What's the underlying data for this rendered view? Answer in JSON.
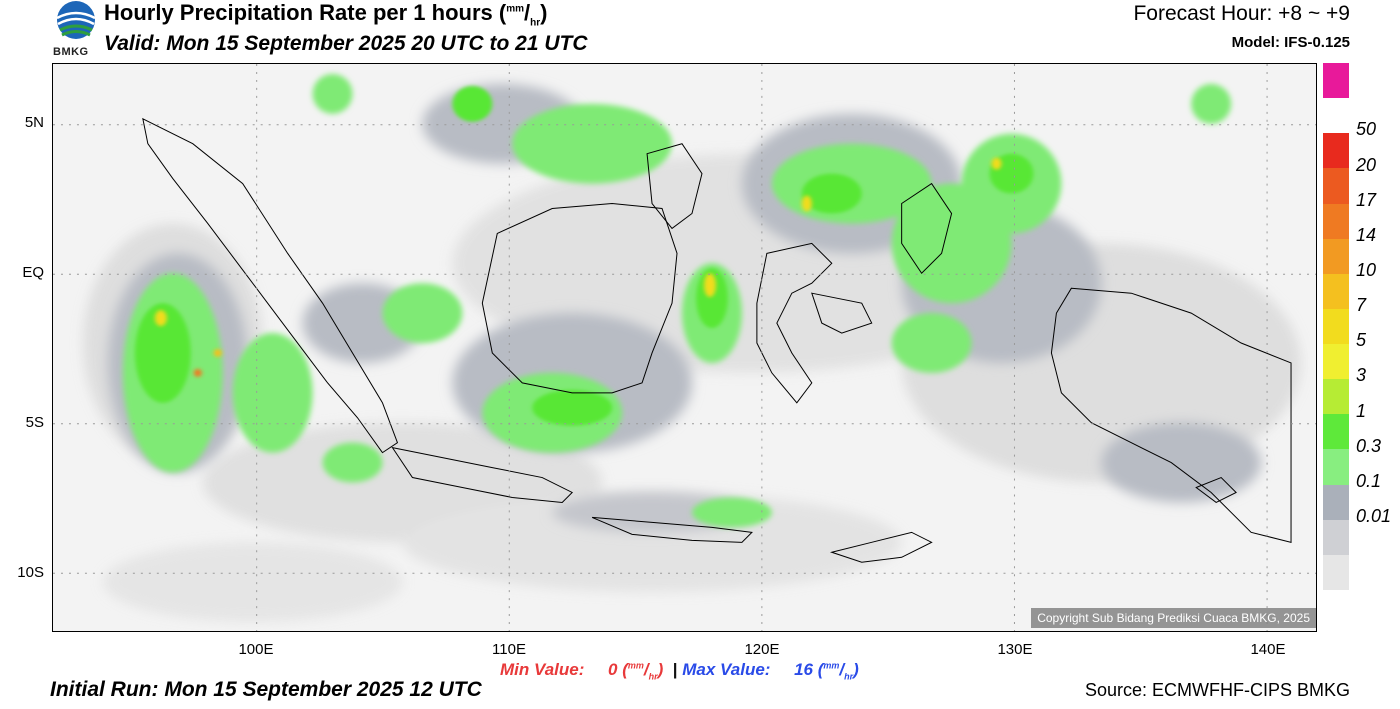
{
  "header": {
    "title": "Hourly Precipitation Rate per 1 hours",
    "title_unit_num": "mm",
    "title_unit_den": "hr",
    "valid": "Valid: Mon 15 September 2025 20 UTC to 21 UTC",
    "forecast_hour": "Forecast Hour: +8 ~ +9",
    "model": "Model: IFS-0.125"
  },
  "logo": {
    "text": "BMKG",
    "icon": "bmkg-logo-icon"
  },
  "axes": {
    "lat_labels": [
      "5N",
      "EQ",
      "5S",
      "10S"
    ],
    "lon_labels": [
      "100E",
      "110E",
      "120E",
      "130E",
      "140E"
    ]
  },
  "colorbar": {
    "labels": [
      "50",
      "20",
      "17",
      "14",
      "10",
      "7",
      "5",
      "3",
      "1",
      "0.3",
      "0.1",
      "0.01"
    ],
    "colors": [
      "#e8199a",
      "#ffffff",
      "#e82a1e",
      "#ec5a20",
      "#ef7a22",
      "#f29a22",
      "#f4c01f",
      "#f2dc1e",
      "#f0ef30",
      "#b6ec34",
      "#5ee93a",
      "#88ee80",
      "#aab0ba",
      "#cfd0d4",
      "#e6e6e6"
    ]
  },
  "stats": {
    "min_label": "Min Value:",
    "min_value": "0",
    "max_label": "Max Value:",
    "max_value": "16",
    "unit_num": "mm",
    "unit_den": "hr",
    "separator": "|"
  },
  "footer": {
    "initial_run": "Initial Run: Mon 15 September 2025 12 UTC",
    "source": "Source: ECMWFHF-CIPS BMKG",
    "copyright": "Copyright Sub Bidang Prediksi Cuaca BMKG, 2025"
  }
}
